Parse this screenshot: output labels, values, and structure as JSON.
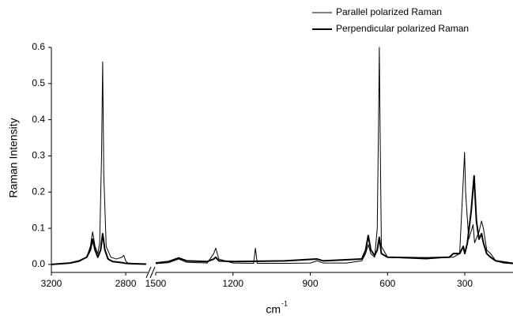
{
  "chart_data": {
    "type": "line",
    "y_label": "Raman Intensity",
    "x_label": "cm",
    "x_label_sup": "-1",
    "legend": "upper right",
    "ylim": [
      -0.022,
      0.6
    ],
    "yticks": [
      {
        "value": 0,
        "label": "0.0"
      },
      0.1,
      0.2,
      0.3,
      0.4,
      0.5,
      0.6
    ],
    "series": [
      {
        "name": "Parallel polarized Raman",
        "color": "#000000",
        "line_width": 1
      },
      {
        "name": "Perpendicular polarized Raman",
        "color": "#000000",
        "line_width": 2
      }
    ],
    "panels": [
      {
        "xlim": [
          3200,
          2681
        ],
        "xticks": [
          3200,
          2800
        ],
        "series": [
          {
            "x": [
              3200,
              3100,
              3050,
              3010,
              2990,
              2978,
              2965,
              2950,
              2940,
              2930,
              2924,
              2918,
              2905,
              2880,
              2850,
              2820,
              2810,
              2800,
              2790,
              2760,
              2720,
              2690
            ],
            "values": [
              0.0,
              0.003,
              0.008,
              0.02,
              0.05,
              0.09,
              0.05,
              0.03,
              0.06,
              0.3,
              0.56,
              0.25,
              0.05,
              0.02,
              0.015,
              0.02,
              0.025,
              0.01,
              0.004,
              0.002,
              0.001,
              0.001
            ]
          },
          {
            "x": [
              3200,
              3100,
              3050,
              3010,
              2990,
              2978,
              2965,
              2950,
              2935,
              2924,
              2912,
              2895,
              2870,
              2820,
              2800,
              2760,
              2690
            ],
            "values": [
              0.0,
              0.004,
              0.01,
              0.02,
              0.04,
              0.07,
              0.04,
              0.02,
              0.04,
              0.085,
              0.04,
              0.015,
              0.008,
              0.005,
              0.003,
              0.002,
              0.001
            ]
          }
        ]
      },
      {
        "xlim": [
          1500,
          113
        ],
        "xticks": [
          1500,
          1200,
          900,
          600,
          300
        ],
        "series": [
          {
            "x": [
              1500,
              1450,
              1411,
              1380,
              1300,
              1275,
              1267,
              1255,
              1200,
              1120,
              1113,
              1106,
              1000,
              900,
              874,
              850,
              760,
              700,
              685,
              675,
              665,
              650,
              640,
              634,
              632,
              630,
              624,
              600,
              450,
              360,
              345,
              320,
              305,
              301,
              297,
              285,
              272,
              268,
              262,
              245,
              235,
              228,
              215,
              200,
              180,
              150,
              113
            ],
            "values": [
              0.002,
              0.005,
              0.015,
              0.006,
              0.004,
              0.03,
              0.045,
              0.015,
              0.004,
              0.003,
              0.045,
              0.003,
              0.003,
              0.004,
              0.01,
              0.004,
              0.004,
              0.01,
              0.03,
              0.055,
              0.03,
              0.02,
              0.1,
              0.45,
              0.6,
              0.45,
              0.05,
              0.02,
              0.015,
              0.02,
              0.02,
              0.03,
              0.25,
              0.31,
              0.2,
              0.07,
              0.1,
              0.11,
              0.06,
              0.09,
              0.12,
              0.1,
              0.04,
              0.03,
              0.01,
              0.004,
              0.002
            ]
          },
          {
            "x": [
              1500,
              1450,
              1411,
              1380,
              1300,
              1275,
              1267,
              1255,
              1200,
              1000,
              874,
              850,
              700,
              685,
              675,
              665,
              650,
              640,
              632,
              624,
              600,
              450,
              360,
              345,
              320,
              306,
              300,
              290,
              275,
              264,
              255,
              245,
              235,
              228,
              215,
              200,
              180,
              113
            ],
            "values": [
              0.004,
              0.008,
              0.018,
              0.01,
              0.008,
              0.015,
              0.02,
              0.01,
              0.008,
              0.01,
              0.015,
              0.01,
              0.015,
              0.04,
              0.08,
              0.04,
              0.025,
              0.04,
              0.075,
              0.03,
              0.02,
              0.018,
              0.02,
              0.03,
              0.03,
              0.05,
              0.03,
              0.06,
              0.15,
              0.245,
              0.12,
              0.07,
              0.085,
              0.06,
              0.03,
              0.02,
              0.01,
              0.003
            ]
          }
        ]
      }
    ]
  }
}
